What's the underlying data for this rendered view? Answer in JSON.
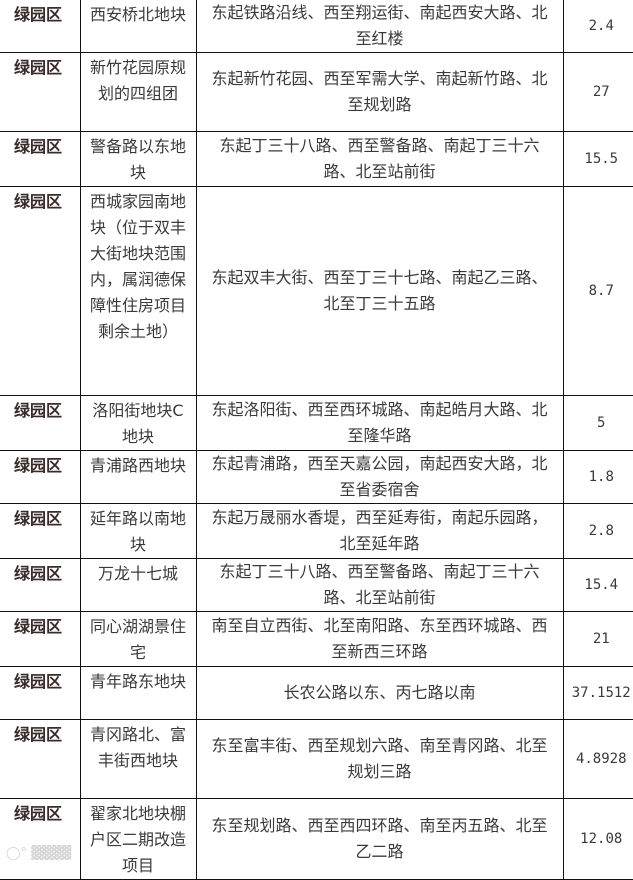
{
  "rows": [
    {
      "district": "绿园区",
      "name": "西安桥北地块",
      "range": "东起铁路沿线、西至翔运街、南起西安大路、北至红楼",
      "area": "2.4"
    },
    {
      "district": "绿园区",
      "name": "新竹花园原规划的四组团",
      "range": "东起新竹花园、西至军需大学、南起新竹路、北至规划路",
      "area": "27"
    },
    {
      "district": "绿园区",
      "name": "警备路以东地块",
      "range": "东起丁三十八路、西至警备路、南起丁三十六路、北至站前街",
      "area": "15.5"
    },
    {
      "district": "绿园区",
      "name": "西城家园南地块（位于双丰大街地块范围内，属润德保障性住房项目剩余土地）",
      "range": "东起双丰大街、西至丁三十七路、南起乙三路、北至丁三十五路",
      "area": "8.7"
    },
    {
      "district": "绿园区",
      "name": "洛阳街地块C地块",
      "range": "东起洛阳街、西至西环城路、南起皓月大路、北至隆华路",
      "area": "5"
    },
    {
      "district": "绿园区",
      "name": "青浦路西地块",
      "range": "东起青浦路，西至天嘉公园，南起西安大路，北至省委宿舍",
      "area": "1.8"
    },
    {
      "district": "绿园区",
      "name": "延年路以南地块",
      "range": "东起万晟丽水香堤，西至延寿街，南起乐园路，北至延年路",
      "area": "2.8"
    },
    {
      "district": "绿园区",
      "name": "万龙十七城",
      "range": "东起丁三十八路、西至警备路、南起丁三十六路、北至站前街",
      "area": "15.4"
    },
    {
      "district": "绿园区",
      "name": "同心湖湖景住宅",
      "range": "南至自立西街、北至南阳路、东至西环城路、西至新西三环路",
      "area": "21"
    },
    {
      "district": "绿园区",
      "name": "青年路东地块",
      "range": "长农公路以东、丙七路以南",
      "area": "37.1512"
    },
    {
      "district": "绿园区",
      "name": "青冈路北、富丰街西地块",
      "range": "东至富丰街、西至规划六路、南至青冈路、北至规划三路",
      "area": "4.8928"
    },
    {
      "district": "绿园区",
      "name": "翟家北地块棚户区二期改造项目",
      "range": "东至规划路、西至西四环路、南至丙五路、北至乙二路",
      "area": "12.08"
    }
  ]
}
